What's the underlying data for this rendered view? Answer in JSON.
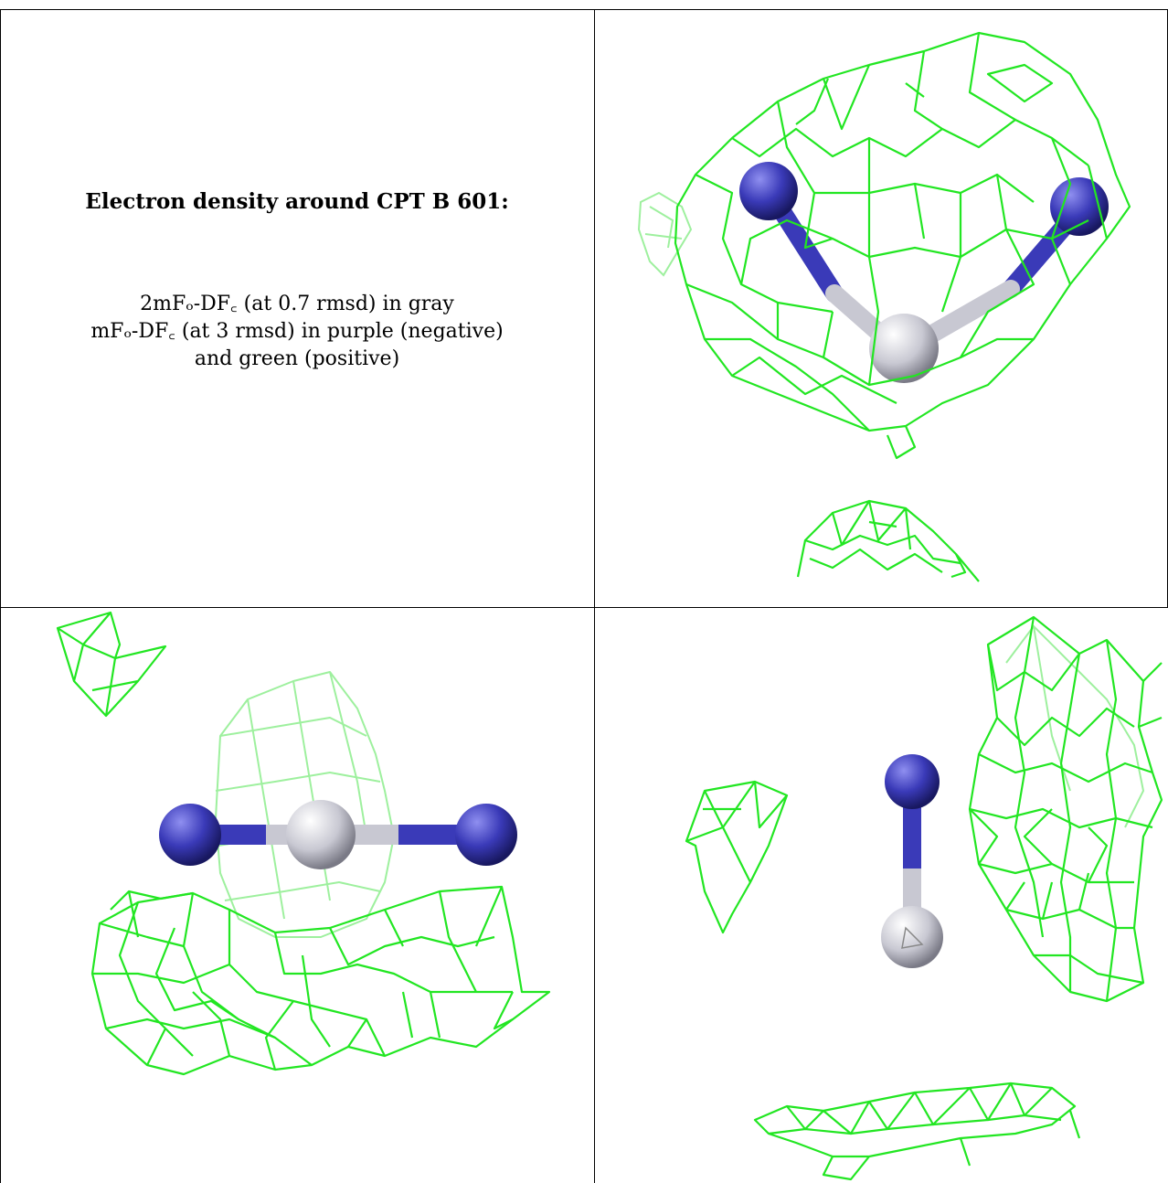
{
  "caption": {
    "title": "Electron density around CPT B 601:",
    "lines": [
      "2mFₒ-DF꜀ (at 0.7 rmsd) in gray",
      "mFₒ-DF꜀ (at 3 rmsd) in purple (negative)",
      "and green (positive)"
    ]
  },
  "panels": [
    {
      "name": "view-top-right"
    },
    {
      "name": "view-bottom-left"
    },
    {
      "name": "view-bottom-right"
    }
  ],
  "colors": {
    "mesh_positive": "#22e622",
    "mesh_faded": "#9ef09e",
    "nitrogen": "#3a3ab8",
    "carbon": "#c8c8d2",
    "border": "#000000"
  }
}
